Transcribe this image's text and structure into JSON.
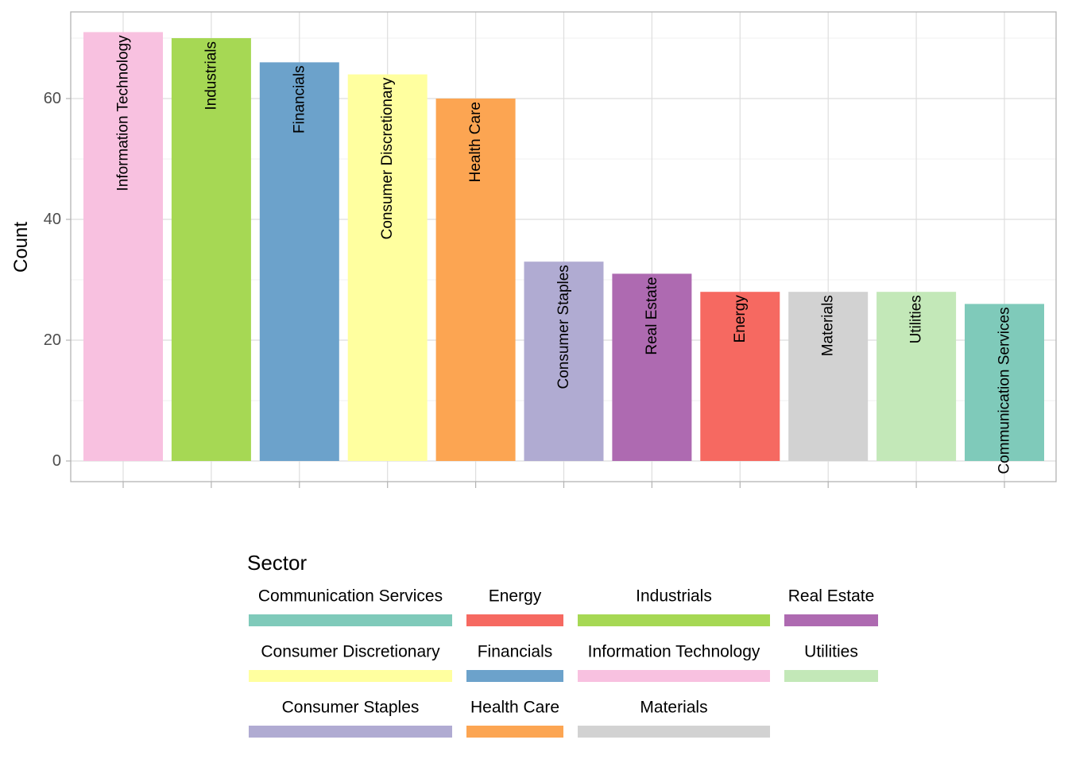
{
  "chart_data": {
    "type": "bar",
    "categories": [
      "Information Technology",
      "Industrials",
      "Financials",
      "Consumer Discretionary",
      "Health Care",
      "Consumer Staples",
      "Real Estate",
      "Energy",
      "Materials",
      "Utilities",
      "Communication Services"
    ],
    "values": [
      71,
      70,
      66,
      64,
      60,
      33,
      31,
      28,
      28,
      28,
      26
    ],
    "colors": [
      "#F8C1E0",
      "#A6D854",
      "#6CA2CB",
      "#FFFF9F",
      "#FCA552",
      "#B0ABD2",
      "#AE6AB1",
      "#F66961",
      "#D2D2D2",
      "#C3E8B8",
      "#7FCABA"
    ],
    "xlabel": "",
    "ylabel": "Count",
    "yticks": [
      0,
      20,
      40,
      60
    ],
    "ylim": [
      -3.5,
      74.5
    ],
    "grid": true,
    "legend": {
      "title": "Sector",
      "position": "bottom",
      "entries": [
        {
          "label": "Communication Services",
          "color": "#7FCABA"
        },
        {
          "label": "Consumer Discretionary",
          "color": "#FFFF9F"
        },
        {
          "label": "Consumer Staples",
          "color": "#B0ABD2"
        },
        {
          "label": "Energy",
          "color": "#F66961"
        },
        {
          "label": "Financials",
          "color": "#6CA2CB"
        },
        {
          "label": "Health Care",
          "color": "#FCA552"
        },
        {
          "label": "Industrials",
          "color": "#A6D854"
        },
        {
          "label": "Information Technology",
          "color": "#F8C1E0"
        },
        {
          "label": "Materials",
          "color": "#D2D2D2"
        },
        {
          "label": "Real Estate",
          "color": "#AE6AB1"
        },
        {
          "label": "Utilities",
          "color": "#C3E8B8"
        }
      ]
    }
  }
}
